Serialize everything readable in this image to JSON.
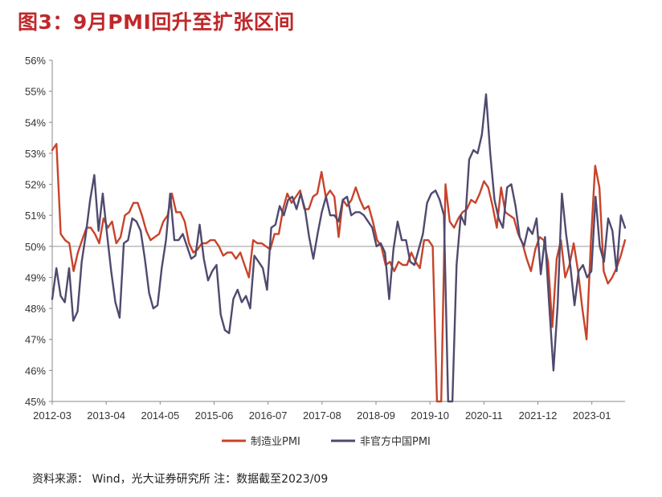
{
  "title": "图3：9月PMI回升至扩张区间",
  "source": "资料来源： Wind，光大证券研究所 注：数据截至2023/09",
  "chart_data": {
    "type": "line",
    "title": "图3：9月PMI回升至扩张区间",
    "xlabel": "",
    "ylabel": "",
    "ylim": [
      45,
      56
    ],
    "yticks": [
      "45%",
      "46%",
      "47%",
      "48%",
      "49%",
      "50%",
      "51%",
      "52%",
      "53%",
      "54%",
      "55%",
      "56%"
    ],
    "x_tick_labels": [
      "2012-03",
      "2013-04",
      "2014-05",
      "2015-06",
      "2016-07",
      "2017-08",
      "2018-09",
      "2019-10",
      "2020-11",
      "2021-12",
      "2023-01"
    ],
    "x_start": "2012-03",
    "x_end": "2023-09",
    "reference_line": 50,
    "legend": [
      "制造业PMI",
      "非官方中国PMI"
    ],
    "legend_position": "bottom",
    "series": [
      {
        "name": "制造业PMI",
        "color": "#c8432a",
        "values": [
          53.1,
          53.3,
          50.4,
          50.2,
          50.1,
          49.2,
          49.8,
          50.2,
          50.6,
          50.6,
          50.4,
          50.1,
          50.9,
          50.6,
          50.8,
          50.1,
          50.3,
          51.0,
          51.1,
          51.4,
          51.4,
          51.0,
          50.5,
          50.2,
          50.3,
          50.4,
          50.8,
          51.0,
          51.7,
          51.1,
          51.1,
          50.8,
          50.1,
          49.8,
          49.9,
          50.1,
          50.1,
          50.2,
          50.2,
          50.0,
          49.7,
          49.8,
          49.8,
          49.6,
          49.8,
          49.4,
          49.0,
          50.2,
          50.1,
          50.1,
          50.0,
          49.9,
          50.4,
          50.4,
          51.2,
          51.7,
          51.4,
          51.6,
          51.8,
          51.2,
          51.2,
          51.6,
          51.7,
          52.4,
          51.6,
          51.8,
          51.6,
          50.3,
          51.5,
          51.3,
          51.5,
          51.9,
          51.5,
          51.2,
          51.3,
          50.8,
          50.2,
          50.0,
          49.4,
          49.5,
          49.2,
          49.5,
          49.4,
          49.4,
          49.8,
          49.5,
          49.3,
          50.2,
          50.2,
          50.0,
          45.0,
          45.0,
          52.0,
          50.8,
          50.6,
          50.9,
          51.1,
          51.2,
          51.5,
          51.4,
          51.7,
          52.1,
          51.9,
          51.3,
          50.6,
          51.9,
          51.1,
          51.0,
          50.9,
          50.4,
          50.1,
          49.6,
          49.2,
          49.9,
          50.3,
          50.2,
          49.5,
          47.4,
          49.6,
          50.2,
          49.0,
          49.4,
          50.1,
          49.2,
          48.0,
          47.0,
          50.1,
          52.6,
          51.9,
          49.2,
          48.8,
          49.0,
          49.3,
          49.7,
          50.2
        ]
      },
      {
        "name": "非官方中国PMI",
        "color": "#4f4a6e",
        "values": [
          48.3,
          49.3,
          48.4,
          48.2,
          49.3,
          47.6,
          47.9,
          49.5,
          50.4,
          51.5,
          52.3,
          50.5,
          51.7,
          50.4,
          49.2,
          48.2,
          47.7,
          50.1,
          50.2,
          50.9,
          50.8,
          50.5,
          49.6,
          48.5,
          48.0,
          48.1,
          49.3,
          50.2,
          51.7,
          50.2,
          50.2,
          50.4,
          50.0,
          49.6,
          49.7,
          50.7,
          49.6,
          48.9,
          49.2,
          49.4,
          47.8,
          47.3,
          47.2,
          48.3,
          48.6,
          48.2,
          48.4,
          48.0,
          49.7,
          49.5,
          49.3,
          48.6,
          50.6,
          50.7,
          51.3,
          51.0,
          51.5,
          51.6,
          51.2,
          51.7,
          51.2,
          50.3,
          49.6,
          50.4,
          51.1,
          51.6,
          51.0,
          51.0,
          50.8,
          51.5,
          51.6,
          51.0,
          51.1,
          51.1,
          51.0,
          50.8,
          50.6,
          50.0,
          50.1,
          49.8,
          48.3,
          49.9,
          50.8,
          50.2,
          50.2,
          49.5,
          49.4,
          49.9,
          50.4,
          51.4,
          51.7,
          51.8,
          51.5,
          51.0,
          45.0,
          45.0,
          49.4,
          51.0,
          50.7,
          52.8,
          53.1,
          53.0,
          53.6,
          54.9,
          53.0,
          51.5,
          50.9,
          50.6,
          51.9,
          52.0,
          51.3,
          50.3,
          50.0,
          50.6,
          50.4,
          50.9,
          49.1,
          50.3,
          48.1,
          46.0,
          48.1,
          51.7,
          50.4,
          49.4,
          48.1,
          49.2,
          49.4,
          49.0,
          49.2,
          51.6,
          50.0,
          49.5,
          50.9,
          50.5,
          49.2,
          51.0,
          50.6
        ]
      }
    ]
  }
}
